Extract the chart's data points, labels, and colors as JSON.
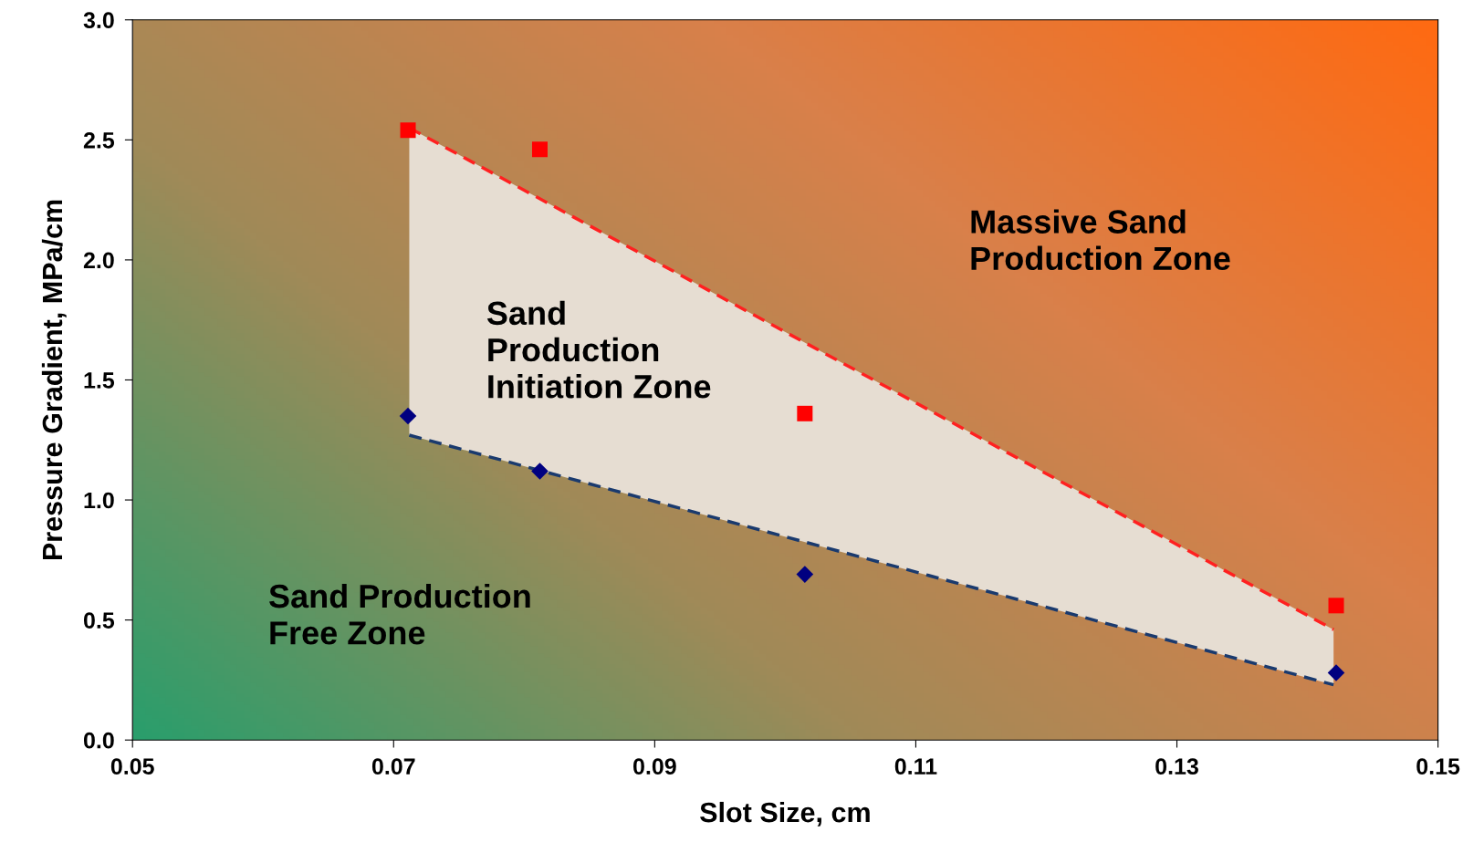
{
  "chart_data": {
    "type": "scatter",
    "xlabel": "Slot Size, cm",
    "ylabel": "Pressure Gradient, MPa/cm",
    "xlim": [
      0.05,
      0.15
    ],
    "xticks": [
      {
        "value": 0.05,
        "label": "0.05"
      },
      {
        "value": 0.07,
        "label": "0.07"
      },
      {
        "value": 0.09,
        "label": "0.09"
      },
      {
        "value": 0.11,
        "label": "0.11"
      },
      {
        "value": 0.13,
        "label": "0.13"
      },
      {
        "value": 0.15,
        "label": "0.15"
      }
    ],
    "ylim": [
      0,
      3
    ],
    "yticks": [
      {
        "value": 0,
        "label": "0.0"
      },
      {
        "value": 0.5,
        "label": "0.5"
      },
      {
        "value": 1,
        "label": "1.0"
      },
      {
        "value": 1.5,
        "label": "1.5"
      },
      {
        "value": 2,
        "label": "2.0"
      },
      {
        "value": 2.5,
        "label": "2.5"
      },
      {
        "value": 3,
        "label": "3.0"
      }
    ],
    "grid": false,
    "legend": false,
    "series": [
      {
        "type": "line",
        "color": "#ff2020",
        "x": [
          0.0712,
          0.142
        ],
        "values": [
          2.55,
          0.46
        ],
        "lower": [
          1.27,
          0.23
        ],
        "upper": [
          2.55,
          0.46
        ],
        "marker": "none",
        "line_style": "dashed"
      },
      {
        "type": "line",
        "color": "#1a3a6e",
        "x": [
          0.0712,
          0.142
        ],
        "values": [
          1.27,
          0.23
        ],
        "marker": "none",
        "line_style": "dashed"
      },
      {
        "color": "#ff0000",
        "x": [
          0.0711,
          0.0812,
          0.1015,
          0.1422
        ],
        "values": [
          2.54,
          2.46,
          1.36,
          0.56
        ],
        "marker": "square"
      },
      {
        "color": "#000080",
        "x": [
          0.0711,
          0.0812,
          0.1015,
          0.1422
        ],
        "values": [
          1.35,
          1.12,
          0.69,
          0.28
        ],
        "marker": "diamond"
      }
    ],
    "annotations": [
      "Sand Production\nFree Zone",
      "Sand\nProduction\nInitiation Zone",
      "Massive Sand\nProduction Zone"
    ]
  }
}
